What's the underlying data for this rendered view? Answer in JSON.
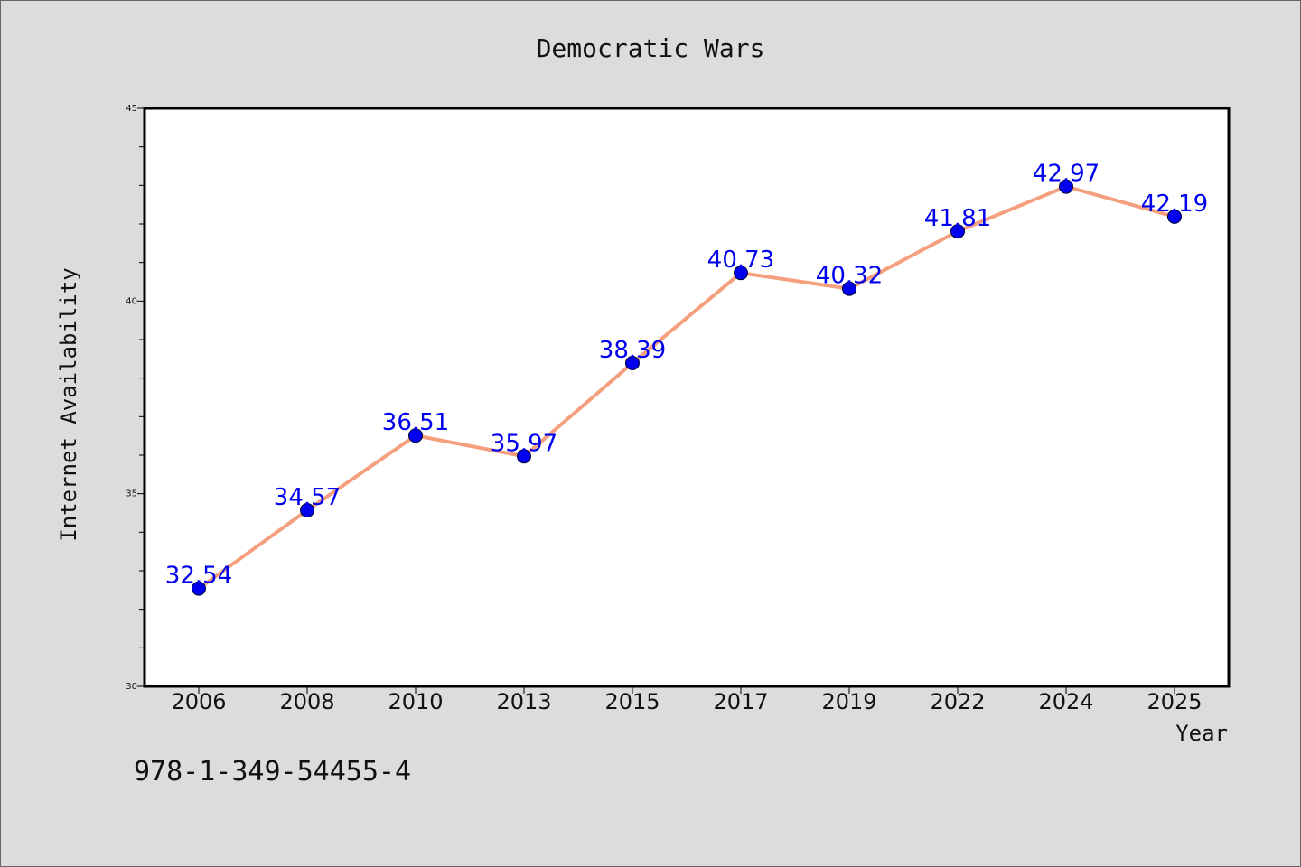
{
  "chart_data": {
    "type": "line",
    "title": "Democratic Wars",
    "xlabel": "Year",
    "ylabel": "Internet Availability",
    "categories": [
      "2006",
      "2008",
      "2010",
      "2013",
      "2015",
      "2017",
      "2019",
      "2022",
      "2024",
      "2025"
    ],
    "values": [
      32.54,
      34.57,
      36.51,
      35.97,
      38.39,
      40.73,
      40.32,
      41.81,
      42.97,
      42.19
    ],
    "data_labels": [
      "32.54",
      "34.57",
      "36.51",
      "35.97",
      "38.39",
      "40.73",
      "40.32",
      "41.81",
      "42.97",
      "42.19"
    ],
    "ylim": [
      30,
      45
    ],
    "yticks": [
      30,
      35,
      40,
      45
    ],
    "ytick_labels": [
      "30",
      "35",
      "40",
      "45"
    ],
    "grid": false,
    "legend": "none",
    "colors": {
      "background": "#dcdcdc",
      "plot_background": "#ffffff",
      "line": "#f4a07e",
      "marker": "#0000ee",
      "data_label": "#0000ee"
    }
  },
  "annotation": "978-1-349-54455-4"
}
